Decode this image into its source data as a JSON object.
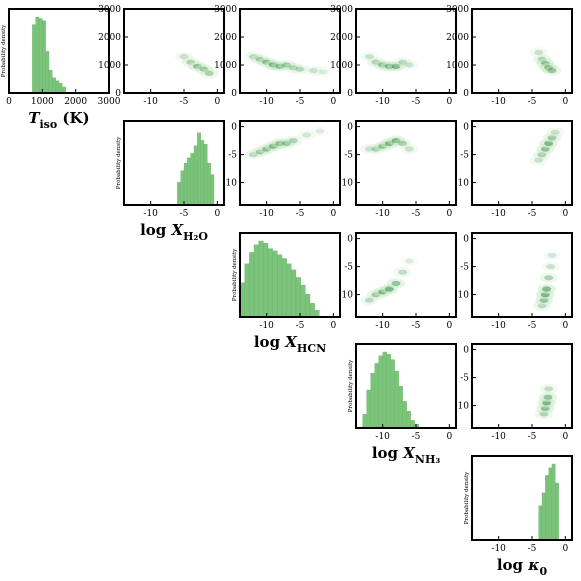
{
  "chart_data": {
    "type": "corner",
    "y_axis_label_hist": "Probability density",
    "colors": {
      "hist": "#7cc47c",
      "density_dark": "#0b6e2e",
      "density_light": "#c7e9c0"
    },
    "params": [
      {
        "key": "T",
        "label_main": "T",
        "label_sub": "iso",
        "label_suffix": " (K)",
        "log_prefix": false,
        "range": [
          0,
          3000
        ],
        "ticks": [
          0,
          1000,
          2000,
          3000
        ]
      },
      {
        "key": "H2O",
        "label_main": "X",
        "label_sub": "H₂O",
        "label_suffix": "",
        "log_prefix": true,
        "range": [
          -14,
          1
        ],
        "ticks": [
          -10,
          -5,
          0
        ]
      },
      {
        "key": "HCN",
        "label_main": "X",
        "label_sub": "HCN",
        "label_suffix": "",
        "log_prefix": true,
        "range": [
          -14,
          1
        ],
        "ticks": [
          -10,
          -5,
          0
        ]
      },
      {
        "key": "NH3",
        "label_main": "X",
        "label_sub": "NH₃",
        "label_suffix": "",
        "log_prefix": true,
        "range": [
          -14,
          1
        ],
        "ticks": [
          -10,
          -5,
          0
        ]
      },
      {
        "key": "kappa",
        "label_main": "κ",
        "label_sub": "0",
        "label_suffix": "",
        "log_prefix": true,
        "range": [
          -14,
          1
        ],
        "ticks": [
          -10,
          -5,
          0
        ]
      }
    ],
    "log_prefix_text": "log ",
    "hist_T": {
      "bins": [
        [
          700,
          800,
          0.9
        ],
        [
          800,
          900,
          1.0
        ],
        [
          900,
          1000,
          0.98
        ],
        [
          1000,
          1100,
          0.95
        ],
        [
          1100,
          1200,
          0.55
        ],
        [
          1200,
          1300,
          0.3
        ],
        [
          1300,
          1400,
          0.2
        ],
        [
          1400,
          1500,
          0.16
        ],
        [
          1500,
          1600,
          0.13
        ],
        [
          1600,
          1700,
          0.08
        ]
      ]
    },
    "hist_H2O": {
      "bins": [
        [
          -6,
          -5.5,
          0.3
        ],
        [
          -5.5,
          -5,
          0.45
        ],
        [
          -5,
          -4.5,
          0.55
        ],
        [
          -4.5,
          -4,
          0.62
        ],
        [
          -4,
          -3.5,
          0.68
        ],
        [
          -3.5,
          -3,
          0.78
        ],
        [
          -3,
          -2.5,
          0.95
        ],
        [
          -2.5,
          -2,
          0.85
        ],
        [
          -2,
          -1.5,
          0.8
        ],
        [
          -1.5,
          -1,
          0.55
        ],
        [
          -1,
          -0.5,
          0.4
        ]
      ]
    },
    "hist_HCN": {
      "bins": [
        [
          -14,
          -13.3,
          0.45
        ],
        [
          -13.3,
          -12.6,
          0.7
        ],
        [
          -12.6,
          -11.9,
          0.85
        ],
        [
          -11.9,
          -11.2,
          0.95
        ],
        [
          -11.2,
          -10.5,
          1.0
        ],
        [
          -10.5,
          -9.8,
          0.97
        ],
        [
          -9.8,
          -9.1,
          0.9
        ],
        [
          -9.1,
          -8.4,
          0.87
        ],
        [
          -8.4,
          -7.7,
          0.82
        ],
        [
          -7.7,
          -7,
          0.77
        ],
        [
          -7,
          -6.3,
          0.7
        ],
        [
          -6.3,
          -5.6,
          0.62
        ],
        [
          -5.6,
          -4.9,
          0.52
        ],
        [
          -4.9,
          -4.2,
          0.42
        ],
        [
          -4.2,
          -3.5,
          0.3
        ],
        [
          -3.5,
          -2.8,
          0.18
        ],
        [
          -2.8,
          -2.1,
          0.09
        ]
      ]
    },
    "hist_NH3": {
      "bins": [
        [
          -13,
          -12.4,
          0.18
        ],
        [
          -12.4,
          -11.8,
          0.5
        ],
        [
          -11.8,
          -11.2,
          0.72
        ],
        [
          -11.2,
          -10.6,
          0.85
        ],
        [
          -10.6,
          -10,
          0.95
        ],
        [
          -10,
          -9.4,
          1.0
        ],
        [
          -9.4,
          -8.8,
          0.97
        ],
        [
          -8.8,
          -8.2,
          0.9
        ],
        [
          -8.2,
          -7.6,
          0.75
        ],
        [
          -7.6,
          -7,
          0.55
        ],
        [
          -7,
          -6.4,
          0.35
        ],
        [
          -6.4,
          -5.8,
          0.22
        ],
        [
          -5.8,
          -5.2,
          0.1
        ],
        [
          -5.2,
          -4.6,
          0.05
        ]
      ]
    },
    "hist_kappa": {
      "bins": [
        [
          -4,
          -3.5,
          0.45
        ],
        [
          -3.5,
          -3,
          0.62
        ],
        [
          -3,
          -2.5,
          0.85
        ],
        [
          -2.5,
          -2,
          0.95
        ],
        [
          -2,
          -1.5,
          1.0
        ],
        [
          -1.5,
          -1,
          0.75
        ]
      ]
    },
    "pairs": [
      {
        "row": 0,
        "col": 1,
        "points": [
          [
            -5,
            1300,
            0.4
          ],
          [
            -4,
            1100,
            0.6
          ],
          [
            -3,
            950,
            0.8
          ],
          [
            -2,
            850,
            0.7
          ],
          [
            -1.2,
            700,
            0.6
          ]
        ]
      },
      {
        "row": 0,
        "col": 2,
        "points": [
          [
            -12,
            1300,
            0.5
          ],
          [
            -11,
            1200,
            0.7
          ],
          [
            -10,
            1100,
            0.9
          ],
          [
            -9,
            1000,
            1.0
          ],
          [
            -8,
            950,
            0.85
          ],
          [
            -7,
            1000,
            0.7
          ],
          [
            -6,
            900,
            0.6
          ],
          [
            -5,
            850,
            0.5
          ],
          [
            -3,
            800,
            0.4
          ],
          [
            -1.5,
            750,
            0.25
          ]
        ]
      },
      {
        "row": 0,
        "col": 3,
        "points": [
          [
            -12,
            1300,
            0.4
          ],
          [
            -11,
            1100,
            0.6
          ],
          [
            -10,
            1000,
            0.85
          ],
          [
            -9,
            950,
            1.0
          ],
          [
            -8,
            950,
            0.9
          ],
          [
            -7,
            1100,
            0.5
          ],
          [
            -6,
            1000,
            0.35
          ]
        ]
      },
      {
        "row": 0,
        "col": 4,
        "points": [
          [
            -4,
            1450,
            0.4
          ],
          [
            -3.5,
            1200,
            0.6
          ],
          [
            -3,
            1050,
            0.85
          ],
          [
            -2.5,
            900,
            1.0
          ],
          [
            -2,
            800,
            0.7
          ]
        ]
      },
      {
        "row": 1,
        "col": 2,
        "points": [
          [
            -12,
            -5,
            0.5
          ],
          [
            -11,
            -4.5,
            0.7
          ],
          [
            -10,
            -4,
            0.85
          ],
          [
            -9,
            -3.5,
            0.95
          ],
          [
            -8,
            -3,
            0.9
          ],
          [
            -7,
            -3,
            0.7
          ],
          [
            -6,
            -2.5,
            0.55
          ],
          [
            -4,
            -1.5,
            0.35
          ],
          [
            -2,
            -0.8,
            0.25
          ]
        ]
      },
      {
        "row": 1,
        "col": 3,
        "points": [
          [
            -12,
            -4,
            0.4
          ],
          [
            -11,
            -4,
            0.6
          ],
          [
            -10,
            -3.5,
            0.8
          ],
          [
            -9,
            -3,
            1.0
          ],
          [
            -8,
            -2.5,
            0.95
          ],
          [
            -7,
            -3,
            0.6
          ],
          [
            -6,
            -4,
            0.4
          ]
        ]
      },
      {
        "row": 1,
        "col": 4,
        "points": [
          [
            -4,
            -6,
            0.4
          ],
          [
            -3.5,
            -5,
            0.6
          ],
          [
            -3,
            -4,
            0.85
          ],
          [
            -2.5,
            -3,
            1.0
          ],
          [
            -2,
            -2,
            0.7
          ],
          [
            -1.5,
            -1,
            0.4
          ]
        ]
      },
      {
        "row": 2,
        "col": 3,
        "points": [
          [
            -12,
            -11,
            0.5
          ],
          [
            -11,
            -10,
            0.75
          ],
          [
            -10,
            -9.5,
            0.95
          ],
          [
            -9,
            -9,
            1.0
          ],
          [
            -8,
            -8,
            0.8
          ],
          [
            -7,
            -6,
            0.45
          ],
          [
            -6,
            -4,
            0.25
          ]
        ]
      },
      {
        "row": 2,
        "col": 4,
        "points": [
          [
            -3.5,
            -12,
            0.5
          ],
          [
            -3.2,
            -11,
            0.8
          ],
          [
            -3,
            -10,
            1.0
          ],
          [
            -2.8,
            -9,
            0.95
          ],
          [
            -2.5,
            -7,
            0.6
          ],
          [
            -2.2,
            -5,
            0.4
          ],
          [
            -2,
            -3,
            0.3
          ]
        ]
      },
      {
        "row": 3,
        "col": 4,
        "points": [
          [
            -3.2,
            -11.5,
            0.6
          ],
          [
            -3,
            -10.5,
            0.85
          ],
          [
            -2.8,
            -9.5,
            1.0
          ],
          [
            -2.6,
            -8.5,
            0.8
          ],
          [
            -2.5,
            -7,
            0.45
          ]
        ]
      }
    ]
  }
}
